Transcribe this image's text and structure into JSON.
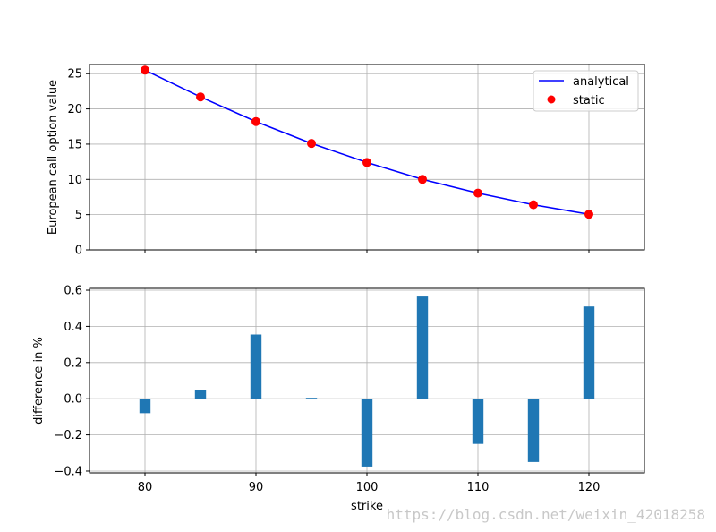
{
  "watermark": "https://blog.csdn.net/weixin_42018258",
  "chart_data": [
    {
      "type": "line",
      "ylabel": "European call option value",
      "xlim": [
        75,
        125
      ],
      "ylim": [
        0,
        26.3
      ],
      "xticks": [
        80,
        90,
        100,
        110,
        120
      ],
      "yticks": [
        0,
        5,
        10,
        15,
        20,
        25
      ],
      "grid": true,
      "legend_position": "top-right",
      "x": [
        80,
        85,
        90,
        95,
        100,
        105,
        110,
        115,
        120
      ],
      "series": [
        {
          "name": "analytical",
          "style": "line",
          "color": "#0000ff",
          "values": [
            25.5,
            21.7,
            18.2,
            15.1,
            12.4,
            10.0,
            8.05,
            6.4,
            5.05
          ]
        },
        {
          "name": "static",
          "style": "markers",
          "color": "#ff0000",
          "values": [
            25.5,
            21.7,
            18.2,
            15.1,
            12.4,
            10.0,
            8.05,
            6.4,
            5.05
          ]
        }
      ]
    },
    {
      "type": "bar",
      "xlabel": "strike",
      "ylabel": "difference in %",
      "xlim": [
        75,
        125
      ],
      "ylim": [
        -0.41,
        0.61
      ],
      "xticks": [
        80,
        90,
        100,
        110,
        120
      ],
      "yticks": [
        -0.4,
        -0.2,
        0.0,
        0.2,
        0.4,
        0.6
      ],
      "ytick_labels": [
        "−0.4",
        "−0.2",
        "0.0",
        "0.2",
        "0.4",
        "0.6"
      ],
      "grid": true,
      "bar_color": "#1f77b4",
      "x": [
        80,
        85,
        90,
        95,
        100,
        105,
        110,
        115,
        120
      ],
      "values": [
        -0.08,
        0.05,
        0.355,
        0.005,
        -0.375,
        0.565,
        -0.25,
        -0.35,
        0.51
      ]
    }
  ]
}
